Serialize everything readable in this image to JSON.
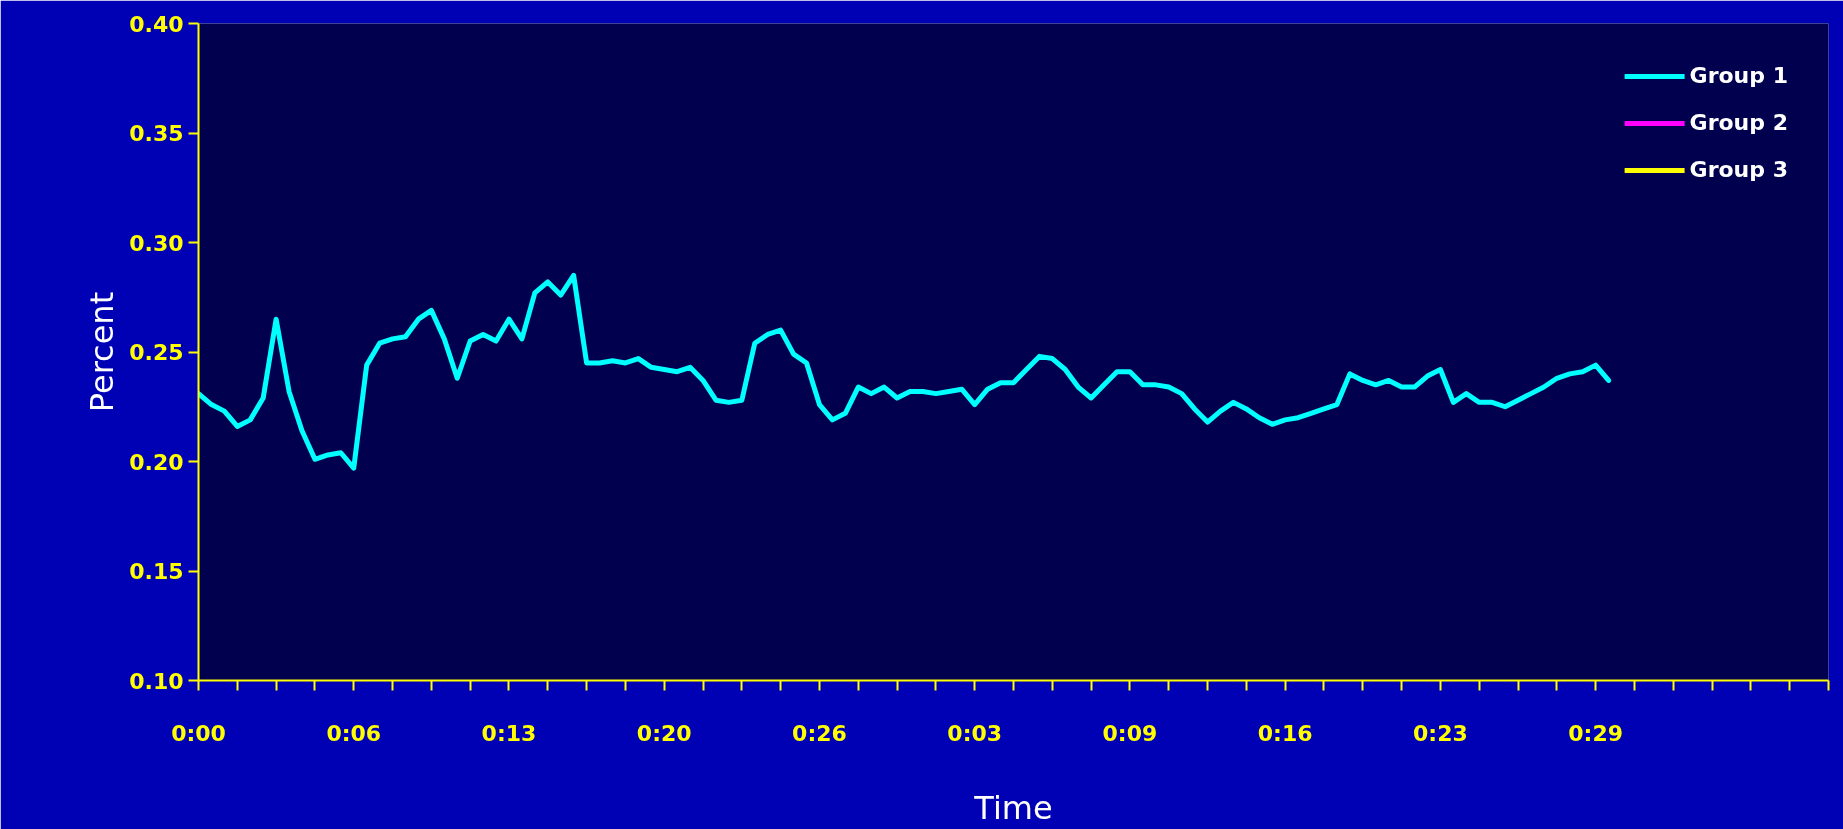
{
  "chart_data": {
    "type": "line",
    "xlabel": "Time",
    "ylabel": "Percent",
    "categories": [
      "0:00",
      null,
      null,
      null,
      null,
      null,
      null,
      null,
      null,
      null,
      null,
      null,
      "0:06",
      null,
      null,
      null,
      null,
      null,
      null,
      null,
      null,
      null,
      null,
      null,
      "0:13",
      null,
      null,
      null,
      null,
      null,
      null,
      null,
      null,
      null,
      null,
      null,
      "0:20",
      null,
      null,
      null,
      null,
      null,
      null,
      null,
      null,
      null,
      null,
      null,
      "0:26",
      null,
      null,
      null,
      null,
      null,
      null,
      null,
      null,
      null,
      null,
      null,
      "0:03",
      null,
      null,
      null,
      null,
      null,
      null,
      null,
      null,
      null,
      null,
      null,
      "0:09",
      null,
      null,
      null,
      null,
      null,
      null,
      null,
      null,
      null,
      null,
      null,
      "0:16",
      null,
      null,
      null,
      null,
      null,
      null,
      null,
      null,
      null,
      null,
      null,
      "0:23",
      null,
      null,
      null,
      null,
      null,
      null,
      null,
      null,
      null,
      null,
      null,
      "0:29",
      null,
      null,
      null,
      null,
      null,
      null,
      null,
      null,
      null,
      null,
      null,
      null,
      null,
      null,
      null,
      null,
      null,
      null
    ],
    "ylim": [
      0.1,
      0.4
    ],
    "yticks": [
      {
        "value": 0.1,
        "label": "0.10"
      },
      {
        "value": 0.15,
        "label": "0.15"
      },
      {
        "value": 0.2,
        "label": "0.20"
      },
      {
        "value": 0.25,
        "label": "0.25"
      },
      {
        "value": 0.3,
        "label": "0.30"
      },
      {
        "value": 0.35,
        "label": "0.35"
      },
      {
        "value": 0.4,
        "label": "0.40"
      }
    ],
    "grid": false,
    "legend": "top right",
    "line_style": "solid",
    "series": [
      {
        "name": "Group 1",
        "color": "#00ffff",
        "values": [
          0.231,
          0.226,
          0.223,
          0.216,
          0.219,
          0.229,
          0.265,
          0.232,
          0.214,
          0.201,
          0.203,
          0.204,
          0.197,
          0.244,
          0.254,
          0.256,
          0.257,
          0.265,
          0.269,
          0.256,
          0.238,
          0.255,
          0.258,
          0.255,
          0.265,
          0.256,
          0.277,
          0.282,
          0.276,
          0.285,
          0.245,
          0.245,
          0.246,
          0.245,
          0.247,
          0.243,
          0.242,
          0.241,
          0.243,
          0.237,
          0.228,
          0.227,
          0.228,
          0.254,
          0.258,
          0.26,
          0.249,
          0.245,
          0.226,
          0.219,
          0.222,
          0.234,
          0.231,
          0.234,
          0.229,
          0.232,
          0.232,
          0.231,
          0.232,
          0.233,
          0.226,
          0.233,
          0.236,
          0.236,
          0.242,
          0.248,
          0.247,
          0.242,
          0.234,
          0.229,
          0.235,
          0.241,
          0.241,
          0.235,
          0.235,
          0.234,
          0.231,
          0.224,
          0.218,
          0.223,
          0.227,
          0.224,
          0.22,
          0.217,
          0.219,
          0.22,
          0.222,
          0.224,
          0.226,
          0.24,
          0.237,
          0.235,
          0.237,
          0.234,
          0.234,
          0.239,
          0.242,
          0.227,
          0.231,
          0.227,
          0.227,
          0.225,
          0.228,
          0.231,
          0.234,
          0.238,
          0.24,
          0.241,
          0.244,
          0.237,
          null,
          null,
          null,
          null,
          null,
          null,
          null,
          null,
          null,
          null,
          null,
          null,
          null,
          null,
          null,
          null,
          null
        ]
      },
      {
        "name": "Group 2",
        "color": "#ff00ff",
        "values": [
          null,
          null,
          null,
          null,
          null,
          null,
          null,
          null,
          null,
          null,
          null,
          null,
          null,
          null,
          null,
          null,
          null,
          null,
          null,
          null,
          null,
          null,
          null,
          null,
          null,
          null,
          null,
          null,
          null,
          null,
          null,
          null,
          null,
          null,
          null,
          null,
          null,
          null,
          null,
          null,
          null,
          null,
          null,
          null,
          null,
          null,
          null,
          null,
          null,
          null,
          null,
          null,
          null,
          null,
          null,
          null,
          null,
          null,
          null,
          null,
          null,
          null,
          null,
          null,
          null,
          null,
          null,
          null,
          null,
          null,
          null,
          null,
          null,
          null,
          null,
          null,
          null,
          null,
          null,
          null,
          null,
          null,
          null,
          null,
          null,
          null,
          null,
          null,
          null,
          null,
          null,
          null,
          null,
          null,
          null,
          null,
          null,
          null,
          null,
          null,
          null,
          null,
          null,
          null,
          null,
          null,
          null,
          null,
          null,
          null,
          null,
          null,
          null,
          null,
          null,
          null,
          null,
          null,
          null,
          null,
          null,
          null,
          null,
          null,
          null,
          null,
          null
        ]
      },
      {
        "name": "Group 3",
        "color": "#ffff00",
        "values": [
          null,
          null,
          null,
          null,
          null,
          null,
          null,
          null,
          null,
          null,
          null,
          null,
          null,
          null,
          null,
          null,
          null,
          null,
          null,
          null,
          null,
          null,
          null,
          null,
          null,
          null,
          null,
          null,
          null,
          null,
          null,
          null,
          null,
          null,
          null,
          null,
          null,
          null,
          null,
          null,
          null,
          null,
          null,
          null,
          null,
          null,
          null,
          null,
          null,
          null,
          null,
          null,
          null,
          null,
          null,
          null,
          null,
          null,
          null,
          null,
          null,
          null,
          null,
          null,
          null,
          null,
          null,
          null,
          null,
          null,
          null,
          null,
          null,
          null,
          null,
          null,
          null,
          null,
          null,
          null,
          null,
          null,
          null,
          null,
          null,
          null,
          null,
          null,
          null,
          null,
          null,
          null,
          null,
          null,
          null,
          null,
          null,
          null,
          null,
          null,
          null,
          null,
          null,
          null,
          null,
          null,
          null,
          null,
          null,
          null,
          null,
          null,
          null,
          null,
          null,
          null,
          null,
          null,
          null,
          null,
          null,
          null,
          null,
          null,
          null,
          null,
          null
        ]
      }
    ]
  }
}
